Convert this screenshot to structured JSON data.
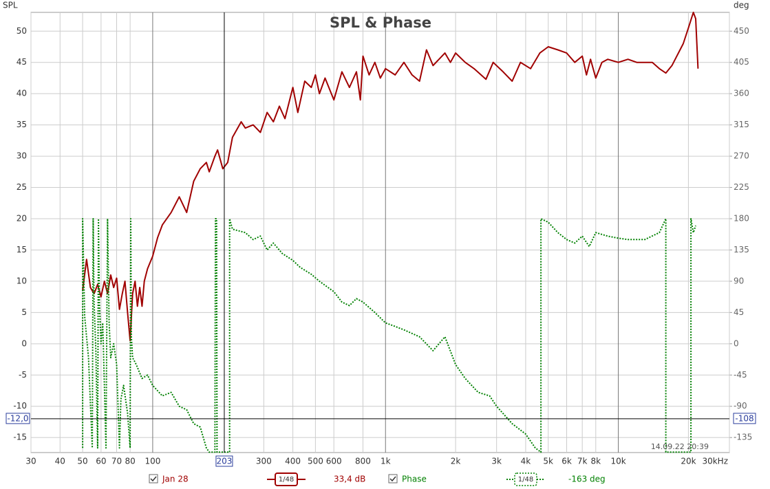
{
  "chart_data": {
    "type": "line",
    "title": "SPL & Phase",
    "y_label": "SPL",
    "y2_label": "deg",
    "x_scale": "log",
    "grid": true,
    "xlim": [
      30,
      30000
    ],
    "xticks": [
      30,
      40,
      50,
      60,
      70,
      80,
      100,
      300,
      400,
      500,
      600,
      800,
      {
        "value": 1000,
        "label": "1k"
      },
      {
        "value": 2000,
        "label": "2k"
      },
      {
        "value": 3000,
        "label": "3k"
      },
      {
        "value": 4000,
        "label": "4k"
      },
      {
        "value": 5000,
        "label": "5k"
      },
      {
        "value": 6000,
        "label": "6k"
      },
      {
        "value": 7000,
        "label": "7k"
      },
      {
        "value": 8000,
        "label": "8k"
      },
      {
        "value": 10000,
        "label": "10k"
      },
      {
        "value": 20000,
        "label": "20k"
      },
      {
        "value": 30000,
        "label": "30kHz"
      }
    ],
    "ylim": [
      -17.4,
      53
    ],
    "yticks": [
      -15,
      -10,
      -5,
      0,
      5,
      10,
      15,
      20,
      25,
      30,
      35,
      40,
      45,
      50
    ],
    "y2lim": [
      -156.6,
      477
    ],
    "y2ticks": [
      -135,
      -90,
      -45,
      0,
      45,
      90,
      135,
      180,
      225,
      270,
      315,
      360,
      405,
      450
    ],
    "cursor": {
      "x": 203,
      "y": {
        "value": -12,
        "label": "-12,0"
      },
      "y2": -108
    },
    "timestamp": "14.09.22 20:39",
    "series": [
      {
        "name": "Jan 28",
        "color": "#a00000",
        "smoothing": "1/48",
        "readout": "33,4 dB",
        "x": [
          50,
          52,
          54,
          56,
          58,
          60,
          62,
          64,
          66,
          68,
          70,
          72,
          74,
          76,
          78,
          80,
          82,
          84,
          86,
          88,
          90,
          92,
          95,
          100,
          105,
          110,
          120,
          130,
          140,
          150,
          160,
          170,
          175,
          185,
          190,
          200,
          210,
          220,
          240,
          250,
          270,
          290,
          310,
          330,
          350,
          370,
          400,
          420,
          450,
          480,
          500,
          520,
          550,
          600,
          650,
          700,
          750,
          780,
          800,
          850,
          900,
          950,
          1000,
          1100,
          1200,
          1300,
          1400,
          1500,
          1600,
          1800,
          1900,
          2000,
          2200,
          2400,
          2700,
          2900,
          3200,
          3500,
          3800,
          4200,
          4600,
          5000,
          5500,
          6000,
          6500,
          7000,
          7300,
          7600,
          8000,
          8500,
          9000,
          10000,
          11000,
          12000,
          14000,
          15000,
          16000,
          17000,
          19000,
          20000,
          21000,
          21500,
          22000
        ],
        "values": [
          8.5,
          13.5,
          9,
          8,
          9.5,
          7.5,
          10,
          8,
          11,
          9,
          10.5,
          5.5,
          8,
          10,
          5,
          0.5,
          8,
          10,
          6,
          9,
          6,
          10,
          12,
          14,
          17,
          19,
          21,
          23.5,
          21,
          26,
          28,
          29,
          27.5,
          30,
          31,
          28,
          29,
          33,
          35.5,
          34.5,
          35,
          33.8,
          37,
          35.5,
          38,
          36,
          41,
          37,
          42,
          41,
          43,
          40,
          42.5,
          39,
          43.5,
          41,
          43.5,
          39,
          46,
          43,
          45,
          42.5,
          44,
          43,
          45,
          43,
          42,
          47,
          44.5,
          46.5,
          45,
          46.5,
          45,
          44,
          42.3,
          45,
          43.5,
          42,
          45,
          44,
          46.5,
          47.5,
          47,
          46.5,
          45,
          46,
          43,
          45.5,
          42.5,
          45,
          45.5,
          45,
          45.5,
          45,
          45,
          44,
          43.3,
          44.5,
          48,
          50.5,
          53,
          52,
          44
        ]
      },
      {
        "name": "Phase",
        "color": "#008000",
        "axis": "y2",
        "smoothing": "1/48",
        "readout": "-163 deg",
        "x": [
          50,
          50,
          51,
          53,
          55,
          55.5,
          56,
          57,
          58,
          58.5,
          59,
          60,
          61,
          62,
          63,
          64,
          65,
          66,
          68,
          70,
          72,
          73,
          75,
          78,
          80,
          80.5,
          81,
          82,
          85,
          90,
          95,
          100,
          110,
          120,
          130,
          140,
          150,
          160,
          170,
          175,
          185,
          186,
          188,
          189,
          200,
          214,
          214,
          220,
          250,
          270,
          290,
          310,
          330,
          360,
          400,
          430,
          480,
          520,
          600,
          650,
          700,
          750,
          800,
          900,
          1000,
          1100,
          1200,
          1400,
          1600,
          1800,
          2000,
          2200,
          2500,
          2800,
          3000,
          3500,
          4000,
          4400,
          4650,
          4650,
          5000,
          5500,
          6000,
          6500,
          7000,
          7500,
          8000,
          9000,
          10000,
          11000,
          13000,
          15000,
          16000,
          16000,
          20500,
          20500,
          21000,
          21500
        ],
        "values": [
          -150,
          180,
          40,
          -20,
          -150,
          180,
          60,
          -10,
          -150,
          180,
          60,
          0,
          30,
          -60,
          -150,
          180,
          30,
          -20,
          0,
          -30,
          -150,
          -80,
          -60,
          -100,
          -150,
          180,
          10,
          -20,
          -30,
          -50,
          -45,
          -60,
          -75,
          -70,
          -90,
          -95,
          -115,
          -120,
          -150,
          -156,
          -156,
          180,
          180,
          -156,
          -156,
          -156,
          180,
          165,
          160,
          150,
          155,
          135,
          145,
          130,
          120,
          110,
          100,
          90,
          75,
          60,
          55,
          65,
          60,
          45,
          30,
          25,
          20,
          10,
          -10,
          10,
          -30,
          -50,
          -70,
          -75,
          -90,
          -115,
          -130,
          -150,
          -156,
          180,
          175,
          160,
          150,
          145,
          155,
          140,
          160,
          155,
          152,
          150,
          150,
          160,
          180,
          -156,
          -156,
          180,
          160,
          170
        ]
      }
    ]
  }
}
